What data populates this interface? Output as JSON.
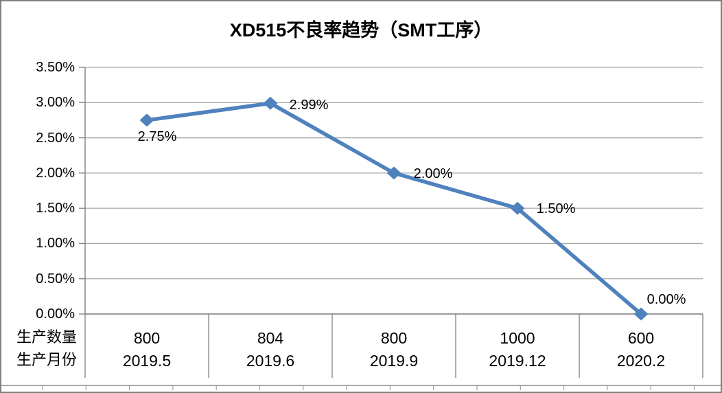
{
  "chart_data": {
    "type": "line",
    "title": "XD515不良率趋势（SMT工序）",
    "series": [
      {
        "name": "不良率",
        "values": [
          2.75,
          2.99,
          2.0,
          1.5,
          0.0
        ]
      }
    ],
    "point_labels": [
      "2.75%",
      "2.99%",
      "2.00%",
      "1.50%",
      "0.00%"
    ],
    "categories_quantities": [
      "800",
      "804",
      "800",
      "1000",
      "600"
    ],
    "categories_months": [
      "2019.5",
      "2019.6",
      "2019.9",
      "2019.12",
      "2020.2"
    ],
    "row_headers": {
      "quantity": "生产数量",
      "month": "生产月份"
    },
    "y_ticks": [
      "3.50%",
      "3.00%",
      "2.50%",
      "2.00%",
      "1.50%",
      "1.00%",
      "0.50%",
      "0.00%"
    ],
    "ylim": [
      0,
      3.5
    ],
    "y_step": 0.5,
    "grid": true,
    "legend": "none",
    "marker": "diamond",
    "line_color": "#4F81BD",
    "grid_color": "#A6A6A6",
    "axis_color": "#808080",
    "text_color": "#000000"
  }
}
